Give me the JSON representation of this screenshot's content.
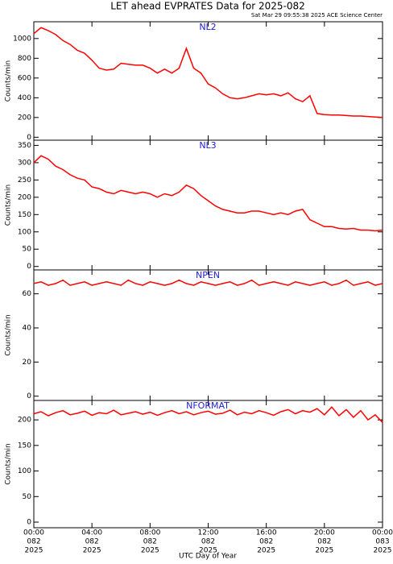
{
  "title": "LET ahead EVPRATES Data for 2025-082",
  "subtitle": "Sat Mar 29 09:55:38 2025 ACE Science Center",
  "xlabel": "UTC Day of Year",
  "xlim": [
    0,
    24
  ],
  "xticks": [
    {
      "value": 0,
      "label": [
        "00:00",
        "082",
        "2025"
      ]
    },
    {
      "value": 4,
      "label": [
        "04:00",
        "082",
        "2025"
      ]
    },
    {
      "value": 8,
      "label": [
        "08:00",
        "082",
        "2025"
      ]
    },
    {
      "value": 12,
      "label": [
        "12:00",
        "082",
        "2025"
      ]
    },
    {
      "value": 16,
      "label": [
        "16:00",
        "082",
        "2025"
      ]
    },
    {
      "value": 20,
      "label": [
        "20:00",
        "082",
        "2025"
      ]
    },
    {
      "value": 24,
      "label": [
        "00:00",
        "083",
        "2025"
      ]
    }
  ],
  "chart_data": [
    {
      "type": "line",
      "title": "NL2",
      "ylabel": "Counts/min",
      "ylim": [
        -30,
        1170
      ],
      "yticks": [
        0,
        200,
        400,
        600,
        800,
        1000
      ],
      "x": [
        0,
        0.5,
        1,
        1.5,
        2,
        2.5,
        3,
        3.5,
        4,
        4.5,
        5,
        5.5,
        6,
        6.5,
        7,
        7.5,
        8,
        8.5,
        9,
        9.5,
        10,
        10.5,
        11,
        11.5,
        12,
        12.5,
        13,
        13.5,
        14,
        14.5,
        15,
        15.5,
        16,
        16.5,
        17,
        17.5,
        18,
        18.5,
        19,
        19.5,
        20,
        20.5,
        21,
        21.5,
        22,
        22.5,
        23,
        23.5,
        24
      ],
      "series": [
        {
          "color": "#ff0000",
          "values": [
            1050,
            1110,
            1080,
            1040,
            980,
            940,
            880,
            850,
            780,
            700,
            680,
            690,
            750,
            740,
            730,
            730,
            700,
            650,
            690,
            650,
            700,
            900,
            700,
            650,
            540,
            500,
            440,
            400,
            390,
            400,
            420,
            440,
            430,
            440,
            420,
            450,
            390,
            360,
            420,
            240,
            230,
            225,
            225,
            220,
            215,
            215,
            210,
            205,
            200
          ]
        }
      ]
    },
    {
      "type": "line",
      "title": "NL3",
      "ylabel": "Counts/min",
      "ylim": [
        -10,
        365
      ],
      "yticks": [
        0,
        50,
        100,
        150,
        200,
        250,
        300,
        350
      ],
      "x": [
        0,
        0.5,
        1,
        1.5,
        2,
        2.5,
        3,
        3.5,
        4,
        4.5,
        5,
        5.5,
        6,
        6.5,
        7,
        7.5,
        8,
        8.5,
        9,
        9.5,
        10,
        10.5,
        11,
        11.5,
        12,
        12.5,
        13,
        13.5,
        14,
        14.5,
        15,
        15.5,
        16,
        16.5,
        17,
        17.5,
        18,
        18.5,
        19,
        19.5,
        20,
        20.5,
        21,
        21.5,
        22,
        22.5,
        23,
        23.5,
        24
      ],
      "series": [
        {
          "color": "#ff0000",
          "values": [
            300,
            320,
            310,
            290,
            280,
            265,
            255,
            250,
            230,
            225,
            215,
            210,
            220,
            215,
            210,
            215,
            210,
            200,
            210,
            205,
            215,
            235,
            225,
            205,
            190,
            175,
            165,
            160,
            155,
            155,
            160,
            160,
            155,
            150,
            155,
            150,
            160,
            165,
            135,
            125,
            115,
            115,
            110,
            108,
            110,
            105,
            105,
            103,
            105
          ]
        }
      ]
    },
    {
      "type": "line",
      "title": "NPEN",
      "ylabel": "Counts/min",
      "ylim": [
        -2.5,
        74
      ],
      "yticks": [
        0,
        20,
        40,
        60
      ],
      "x": [
        0,
        0.5,
        1,
        1.5,
        2,
        2.5,
        3,
        3.5,
        4,
        4.5,
        5,
        5.5,
        6,
        6.5,
        7,
        7.5,
        8,
        8.5,
        9,
        9.5,
        10,
        10.5,
        11,
        11.5,
        12,
        12.5,
        13,
        13.5,
        14,
        14.5,
        15,
        15.5,
        16,
        16.5,
        17,
        17.5,
        18,
        18.5,
        19,
        19.5,
        20,
        20.5,
        21,
        21.5,
        22,
        22.5,
        23,
        23.5,
        24
      ],
      "series": [
        {
          "color": "#ff0000",
          "values": [
            66,
            67,
            65,
            66,
            68,
            65,
            66,
            67,
            65,
            66,
            67,
            66,
            65,
            68,
            66,
            65,
            67,
            66,
            65,
            66,
            68,
            66,
            65,
            67,
            66,
            65,
            66,
            67,
            65,
            66,
            68,
            65,
            66,
            67,
            66,
            65,
            67,
            66,
            65,
            66,
            67,
            65,
            66,
            68,
            65,
            66,
            67,
            65,
            66
          ]
        }
      ]
    },
    {
      "type": "line",
      "title": "NFORMAT",
      "ylabel": "Counts/min",
      "ylim": [
        -11,
        238
      ],
      "yticks": [
        0,
        50,
        100,
        150,
        200
      ],
      "x": [
        0,
        0.5,
        1,
        1.5,
        2,
        2.5,
        3,
        3.5,
        4,
        4.5,
        5,
        5.5,
        6,
        6.5,
        7,
        7.5,
        8,
        8.5,
        9,
        9.5,
        10,
        10.5,
        11,
        11.5,
        12,
        12.5,
        13,
        13.5,
        14,
        14.5,
        15,
        15.5,
        16,
        16.5,
        17,
        17.5,
        18,
        18.5,
        19,
        19.5,
        20,
        20.5,
        21,
        21.5,
        22,
        22.5,
        23,
        23.5,
        24
      ],
      "series": [
        {
          "color": "#ff0000",
          "values": [
            212,
            216,
            208,
            214,
            218,
            210,
            213,
            217,
            209,
            214,
            212,
            219,
            210,
            213,
            216,
            211,
            215,
            209,
            214,
            218,
            212,
            216,
            210,
            214,
            217,
            211,
            213,
            219,
            210,
            215,
            212,
            218,
            214,
            209,
            216,
            220,
            212,
            218,
            215,
            222,
            210,
            225,
            208,
            220,
            205,
            218,
            200,
            210,
            195
          ]
        }
      ]
    }
  ]
}
